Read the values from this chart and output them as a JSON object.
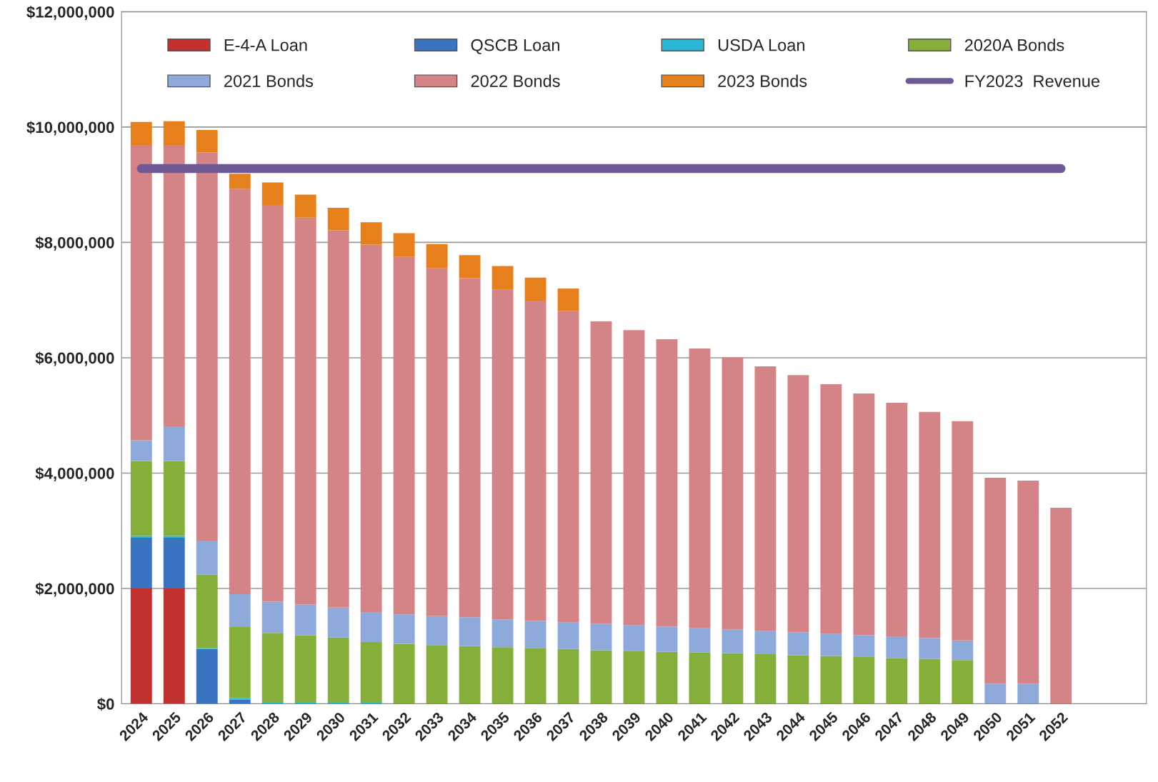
{
  "chart_data": {
    "type": "bar",
    "stacked": true,
    "categories": [
      "2024",
      "2025",
      "2026",
      "2027",
      "2028",
      "2029",
      "2030",
      "2031",
      "2032",
      "2033",
      "2034",
      "2035",
      "2036",
      "2037",
      "2038",
      "2039",
      "2040",
      "2041",
      "2042",
      "2043",
      "2044",
      "2045",
      "2046",
      "2047",
      "2048",
      "2049",
      "2050",
      "2051",
      "2052"
    ],
    "series": [
      {
        "name": "E-4-A Loan",
        "color": "#c0312f",
        "values": [
          2000000,
          2000000,
          null,
          null,
          null,
          null,
          null,
          null,
          null,
          null,
          null,
          null,
          null,
          null,
          null,
          null,
          null,
          null,
          null,
          null,
          null,
          null,
          null,
          null,
          null,
          null,
          null,
          null,
          null
        ]
      },
      {
        "name": "QSCB Loan",
        "color": "#3a73bf",
        "values": [
          880000,
          880000,
          950000,
          70000,
          null,
          null,
          null,
          null,
          null,
          null,
          null,
          null,
          null,
          null,
          null,
          null,
          null,
          null,
          null,
          null,
          null,
          null,
          null,
          null,
          null,
          null,
          null,
          null,
          null
        ]
      },
      {
        "name": "USDA Loan",
        "color": "#2bb5d6",
        "values": [
          30000,
          30000,
          20000,
          30000,
          20000,
          20000,
          20000,
          20000,
          null,
          null,
          null,
          null,
          null,
          null,
          null,
          null,
          null,
          null,
          null,
          null,
          null,
          null,
          null,
          null,
          null,
          null,
          null,
          null,
          null
        ]
      },
      {
        "name": "2020A Bonds",
        "color": "#86ae3a",
        "values": [
          1300000,
          1300000,
          1270000,
          1230000,
          1210000,
          1170000,
          1130000,
          1050000,
          1040000,
          1020000,
          1000000,
          980000,
          970000,
          950000,
          930000,
          920000,
          900000,
          890000,
          880000,
          860000,
          840000,
          830000,
          820000,
          790000,
          780000,
          760000,
          null,
          null,
          null
        ]
      },
      {
        "name": "2021 Bonds",
        "color": "#8eaadb",
        "values": [
          360000,
          600000,
          590000,
          570000,
          540000,
          530000,
          520000,
          520000,
          510000,
          500000,
          500000,
          480000,
          470000,
          460000,
          460000,
          440000,
          440000,
          420000,
          410000,
          400000,
          400000,
          380000,
          370000,
          380000,
          360000,
          340000,
          350000,
          350000,
          null
        ]
      },
      {
        "name": "2022 Bonds",
        "color": "#d48486",
        "values": [
          5120000,
          4880000,
          6730000,
          7030000,
          6880000,
          6710000,
          6540000,
          6370000,
          6200000,
          6030000,
          5880000,
          5720000,
          5550000,
          5400000,
          5240000,
          5120000,
          4980000,
          4850000,
          4720000,
          4590000,
          4460000,
          4330000,
          4190000,
          4050000,
          3920000,
          3800000,
          3570000,
          3520000,
          3400000
        ]
      },
      {
        "name": "2023 Bonds",
        "color": "#e5801c",
        "values": [
          400000,
          410000,
          390000,
          260000,
          390000,
          400000,
          390000,
          390000,
          410000,
          420000,
          400000,
          410000,
          400000,
          390000,
          null,
          null,
          null,
          null,
          null,
          null,
          null,
          null,
          null,
          null,
          null,
          null,
          null,
          null,
          null
        ]
      },
      {
        "name": "FY2023  Revenue",
        "type": "line",
        "color": "#6f5a96",
        "values": [
          9280000,
          9280000,
          9280000,
          9280000,
          9280000,
          9280000,
          9280000,
          9280000,
          9280000,
          9280000,
          9280000,
          9280000,
          9280000,
          9280000,
          9280000,
          9280000,
          9280000,
          9280000,
          9280000,
          9280000,
          9280000,
          9280000,
          9280000,
          9280000,
          9280000,
          9280000,
          9280000,
          9280000,
          9280000
        ]
      }
    ],
    "ylim": [
      0,
      12000000
    ],
    "yticks": [
      {
        "value": 0,
        "label": "$0"
      },
      {
        "value": 2000000,
        "label": "$2,000,000"
      },
      {
        "value": 4000000,
        "label": "$4,000,000"
      },
      {
        "value": 6000000,
        "label": "$6,000,000"
      },
      {
        "value": 8000000,
        "label": "$8,000,000"
      },
      {
        "value": 10000000,
        "label": "$10,000,000"
      },
      {
        "value": 12000000,
        "label": "$12,000,000"
      }
    ],
    "grid": "y",
    "legend": "top"
  }
}
